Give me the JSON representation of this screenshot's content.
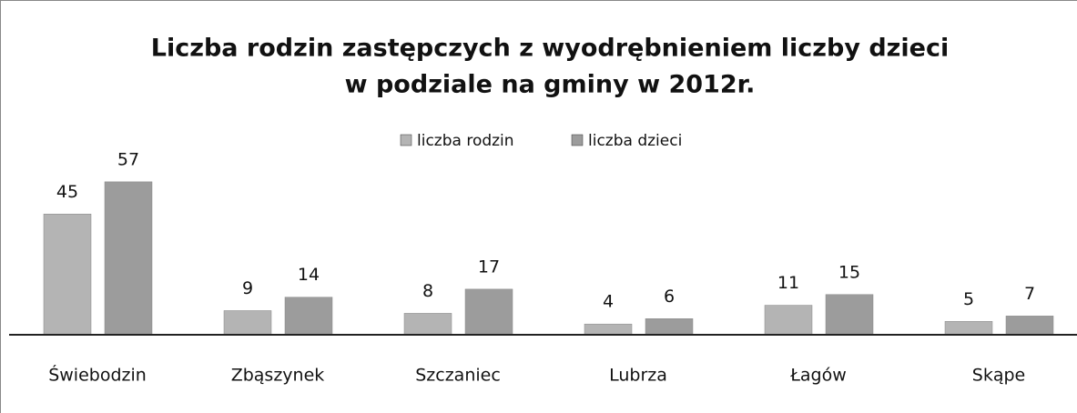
{
  "chart_data": {
    "type": "bar",
    "title": [
      "Liczba rodzin zastępczych z wyodrębnieniem liczby dzieci",
      "w podziale na gminy w 2012r."
    ],
    "categories": [
      "Świebodzin",
      "Zbąszynek",
      "Szczaniec",
      "Lubrza",
      "Łagów",
      "Skąpe"
    ],
    "series": [
      {
        "name": "liczba rodzin",
        "color": "#b4b4b4",
        "values": [
          45,
          9,
          8,
          4,
          11,
          5
        ]
      },
      {
        "name": "liczba dzieci",
        "color": "#9c9c9c",
        "values": [
          57,
          14,
          17,
          6,
          15,
          7
        ]
      }
    ],
    "ylim": [
      0,
      60
    ],
    "legend": "top"
  }
}
